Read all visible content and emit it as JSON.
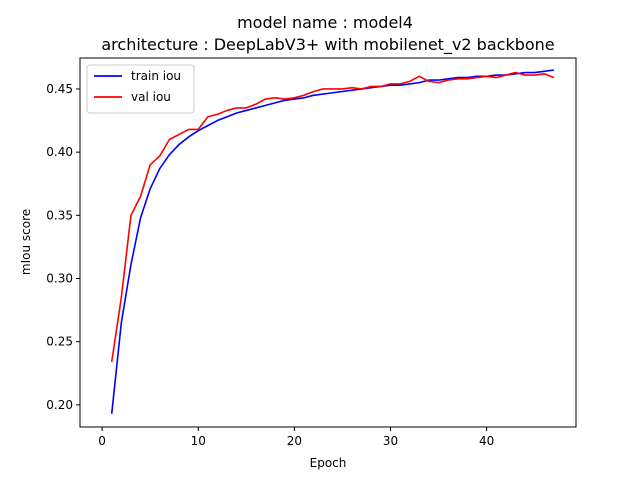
{
  "chart_data": {
    "type": "line",
    "title": "model name : model4",
    "subtitle": "architecture : DeepLabV3+ with mobilenet_v2 backbone",
    "xlabel": "Epoch",
    "ylabel": "mIou score",
    "xlim": [
      -2.3,
      49.3
    ],
    "ylim": [
      0.1825,
      0.4745
    ],
    "xticks": [
      0,
      10,
      20,
      30,
      40
    ],
    "xtick_labels": [
      "0",
      "10",
      "20",
      "30",
      "40"
    ],
    "yticks": [
      0.2,
      0.25,
      0.3,
      0.35,
      0.4,
      0.45
    ],
    "ytick_labels": [
      "0.20",
      "0.25",
      "0.30",
      "0.35",
      "0.40",
      "0.45"
    ],
    "grid": false,
    "legend_position": "top-left",
    "x": [
      1,
      2,
      3,
      4,
      5,
      6,
      7,
      8,
      9,
      10,
      11,
      12,
      13,
      14,
      15,
      16,
      17,
      18,
      19,
      20,
      21,
      22,
      23,
      24,
      25,
      26,
      27,
      28,
      29,
      30,
      31,
      32,
      33,
      34,
      35,
      36,
      37,
      38,
      39,
      40,
      41,
      42,
      43,
      44,
      45,
      46,
      47
    ],
    "series": [
      {
        "name": "train iou",
        "color": "#0000ff",
        "values": [
          0.193,
          0.265,
          0.311,
          0.348,
          0.371,
          0.387,
          0.398,
          0.406,
          0.412,
          0.417,
          0.421,
          0.425,
          0.428,
          0.431,
          0.433,
          0.435,
          0.437,
          0.439,
          0.441,
          0.442,
          0.443,
          0.445,
          0.446,
          0.447,
          0.448,
          0.449,
          0.45,
          0.451,
          0.452,
          0.453,
          0.453,
          0.454,
          0.455,
          0.457,
          0.457,
          0.458,
          0.459,
          0.459,
          0.46,
          0.46,
          0.461,
          0.461,
          0.462,
          0.463,
          0.463,
          0.464,
          0.465
        ]
      },
      {
        "name": "val iou",
        "color": "#ff0000",
        "values": [
          0.234,
          0.285,
          0.35,
          0.365,
          0.39,
          0.397,
          0.41,
          0.414,
          0.418,
          0.418,
          0.428,
          0.43,
          0.433,
          0.435,
          0.435,
          0.438,
          0.442,
          0.443,
          0.442,
          0.443,
          0.445,
          0.448,
          0.45,
          0.45,
          0.45,
          0.451,
          0.45,
          0.452,
          0.452,
          0.454,
          0.454,
          0.456,
          0.46,
          0.456,
          0.455,
          0.457,
          0.458,
          0.458,
          0.459,
          0.46,
          0.459,
          0.461,
          0.463,
          0.461,
          0.461,
          0.462,
          0.459
        ]
      }
    ]
  }
}
